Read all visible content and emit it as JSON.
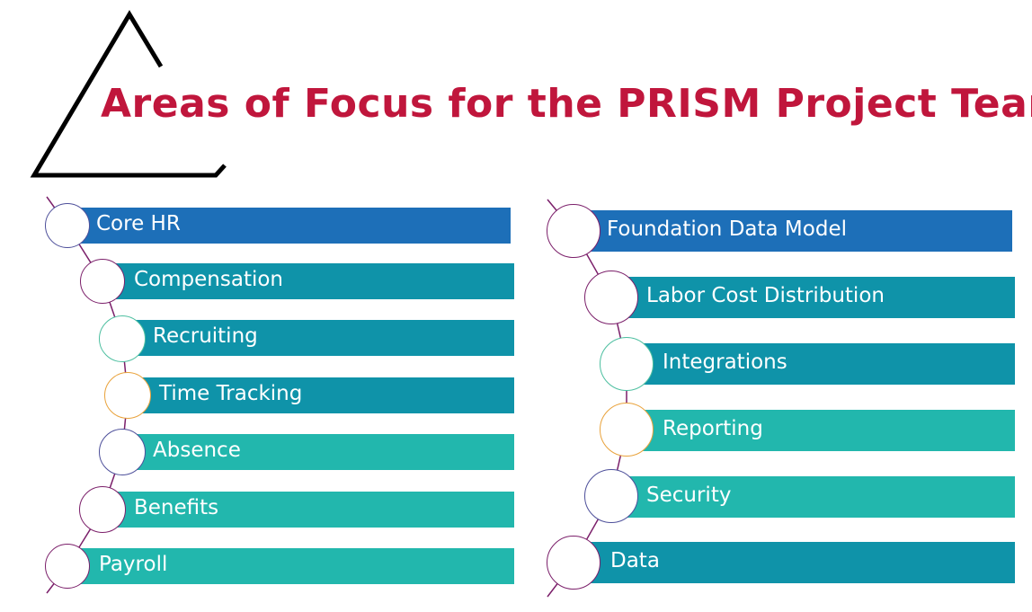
{
  "title": "Areas of Focus for the PRISM Project Team",
  "colors": {
    "title": "#c0163c",
    "blue": "#1d6fb8",
    "teal_dark": "#0f93a9",
    "teal_light": "#22b7ad",
    "purple": "#7b1f6a",
    "mint": "#4dbfa0",
    "orange": "#e9a23b",
    "indigo": "#4d4f9a"
  },
  "left_list": [
    {
      "label": "Core HR",
      "color": "blue",
      "ring": "indigo"
    },
    {
      "label": "Compensation",
      "color": "teal_dark",
      "ring": "purple"
    },
    {
      "label": "Recruiting",
      "color": "teal_dark",
      "ring": "mint"
    },
    {
      "label": "Time Tracking",
      "color": "teal_dark",
      "ring": "orange"
    },
    {
      "label": "Absence",
      "color": "teal_light",
      "ring": "indigo"
    },
    {
      "label": "Benefits",
      "color": "teal_light",
      "ring": "purple"
    },
    {
      "label": "Payroll",
      "color": "teal_light",
      "ring": "purple"
    }
  ],
  "right_list": [
    {
      "label": "Foundation Data Model",
      "color": "blue",
      "ring": "purple"
    },
    {
      "label": "Labor Cost Distribution",
      "color": "teal_dark",
      "ring": "purple"
    },
    {
      "label": "Integrations",
      "color": "teal_dark",
      "ring": "mint"
    },
    {
      "label": "Reporting",
      "color": "teal_light",
      "ring": "orange"
    },
    {
      "label": "Security",
      "color": "teal_light",
      "ring": "indigo"
    },
    {
      "label": "Data",
      "color": "teal_dark",
      "ring": "purple"
    }
  ]
}
